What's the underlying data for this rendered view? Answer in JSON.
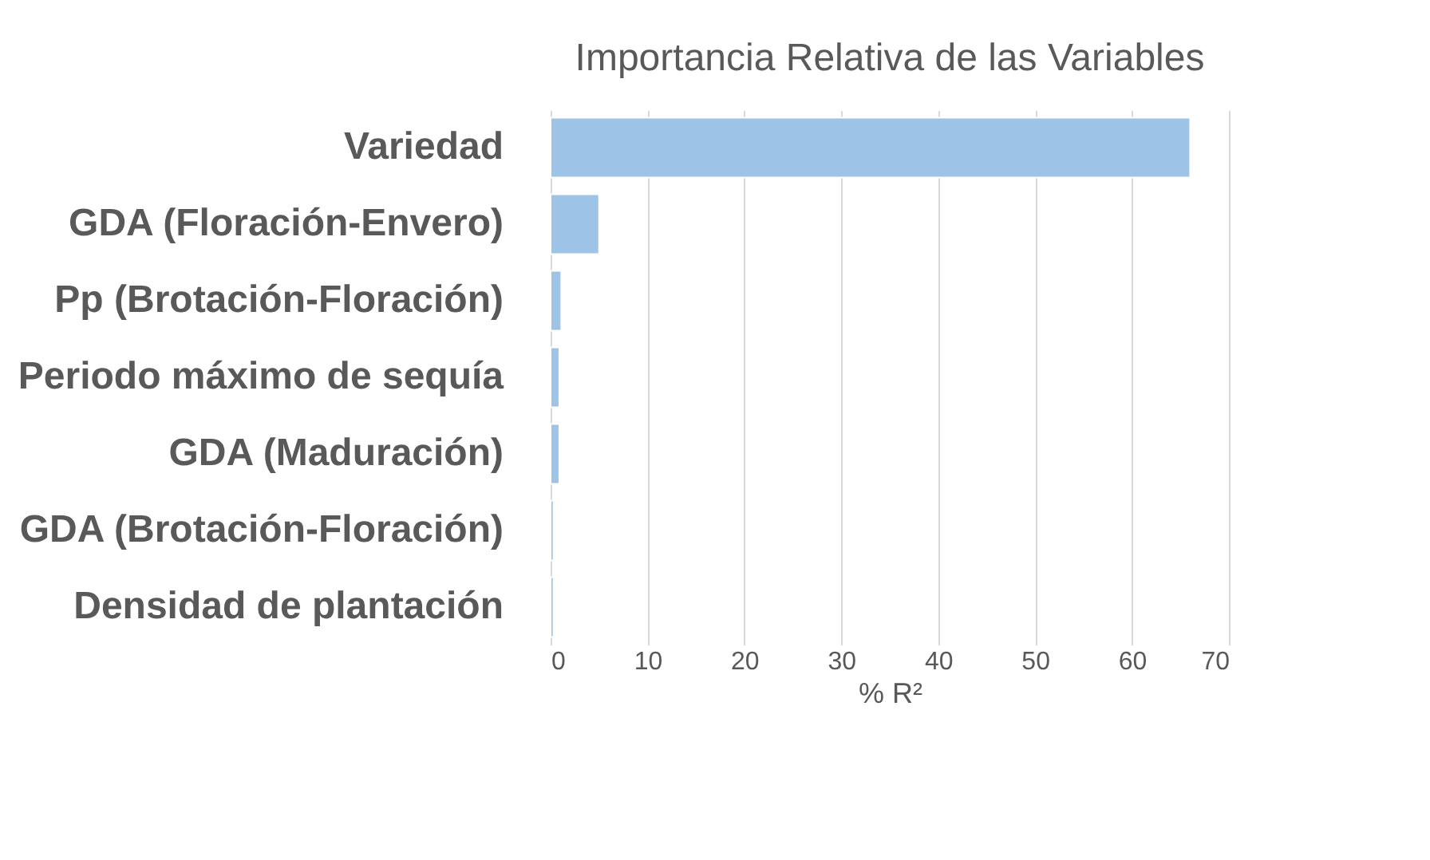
{
  "chart_data": {
    "type": "bar",
    "orientation": "horizontal",
    "title": "Importancia Relativa de las Variables",
    "xlabel": "% R²",
    "categories": [
      "Variedad",
      "GDA (Floración-Envero)",
      "Pp (Brotación-Floración)",
      "Periodo máximo de sequía",
      "GDA (Maduración)",
      "GDA (Brotación-Floración)",
      "Densidad de plantación"
    ],
    "values": [
      66,
      5,
      1.1,
      0.9,
      0.9,
      0.3,
      0.3
    ],
    "color": "#9dc3e6",
    "xlim": [
      0,
      70
    ],
    "xticks": [
      0,
      10,
      20,
      30,
      40,
      50,
      60,
      70
    ],
    "grid": "x"
  }
}
